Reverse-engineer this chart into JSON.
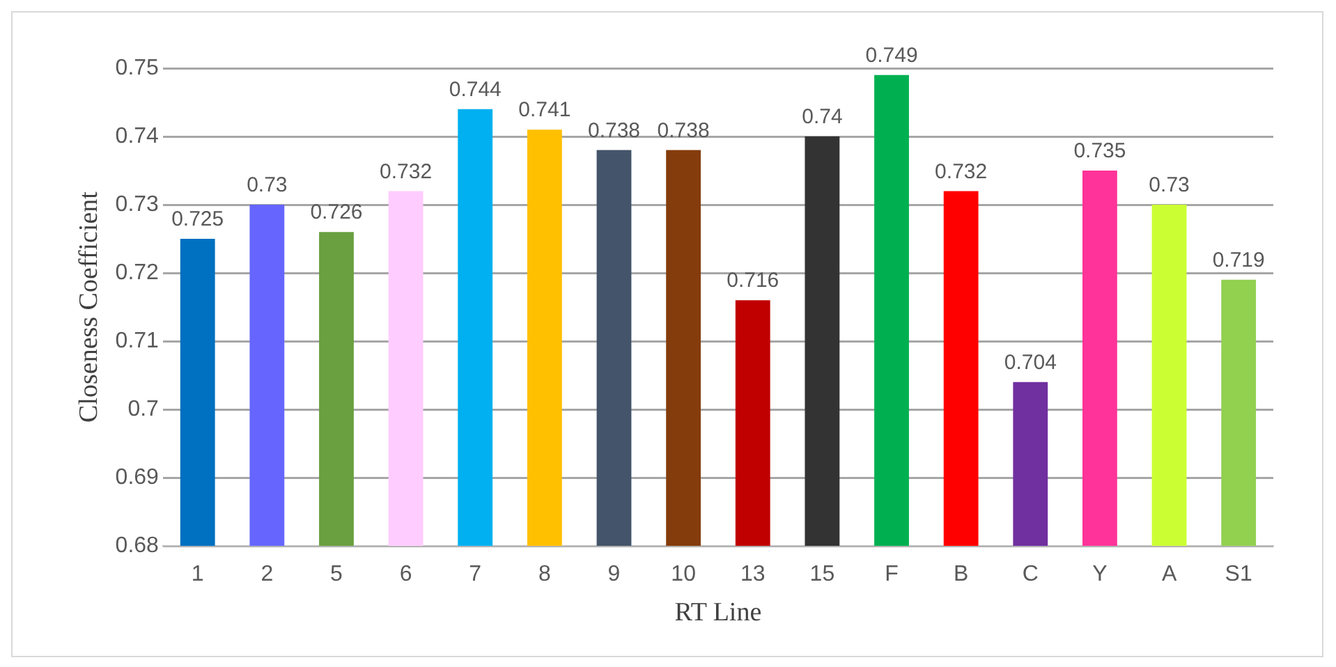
{
  "chart_data": {
    "type": "bar",
    "xlabel": "RT Line",
    "ylabel": "Closeness Coefficient",
    "categories": [
      "1",
      "2",
      "5",
      "6",
      "7",
      "8",
      "9",
      "10",
      "13",
      "15",
      "F",
      "B",
      "C",
      "Y",
      "A",
      "S1"
    ],
    "values": [
      0.725,
      0.73,
      0.726,
      0.732,
      0.744,
      0.741,
      0.738,
      0.738,
      0.716,
      0.74,
      0.749,
      0.732,
      0.704,
      0.735,
      0.73,
      0.719
    ],
    "colors": [
      "#0070c0",
      "#6666ff",
      "#6aa040",
      "#ffccff",
      "#00b0f0",
      "#ffc000",
      "#44546a",
      "#843c0c",
      "#c00000",
      "#333333",
      "#00b050",
      "#ff0000",
      "#7030a0",
      "#ff3399",
      "#ccff33",
      "#92d050"
    ],
    "ylim": [
      0.68,
      0.75
    ],
    "yticks": [
      0.68,
      0.69,
      0.7,
      0.71,
      0.72,
      0.73,
      0.74,
      0.75
    ],
    "grid": "y",
    "legend": false,
    "data_labels": true
  }
}
